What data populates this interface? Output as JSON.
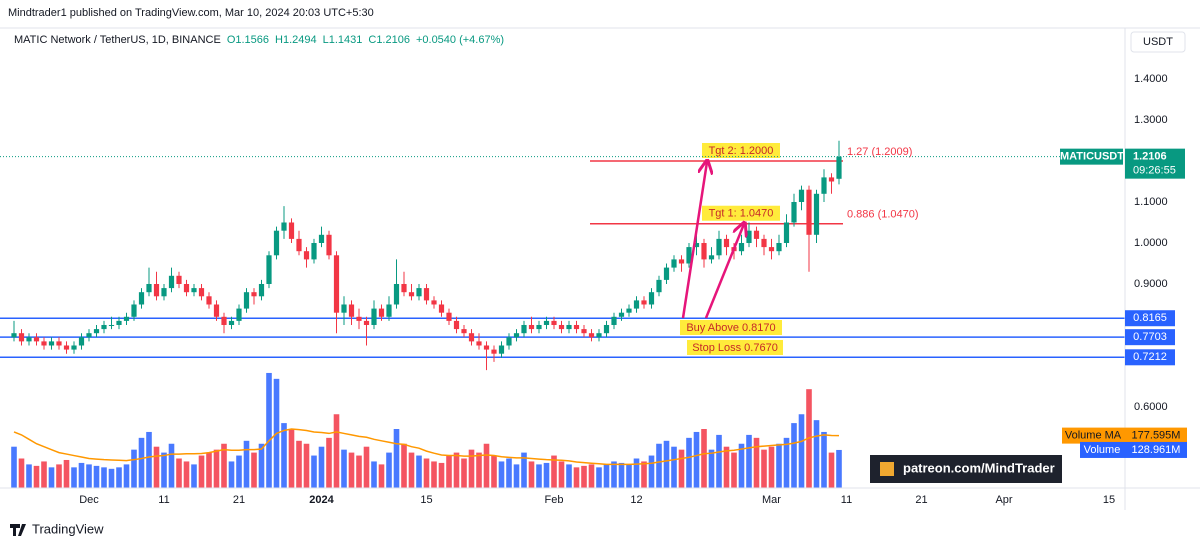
{
  "header": {
    "publisher": "Mindtrader1 published on TradingView.com, Mar 10, 2024 20:03 UTC+5:30",
    "footer": "TradingView"
  },
  "chart_data": {
    "type": "candlestick",
    "title": "MATIC Network / TetherUS, 1D, BINANCE",
    "legend": [
      "O1.1566",
      "H1.2494",
      "L1.1431",
      "C1.2106",
      "+0.0540 (+4.67%)"
    ],
    "currency": "USDT",
    "symbol": "MATICUSDT",
    "last_price": 1.2106,
    "countdown": "09:26:55",
    "up_color": "#089981",
    "down_color": "#f23645",
    "grid": false,
    "ylim": [
      0.4024,
      1.5244
    ],
    "yticks": [
      {
        "value": 1.4,
        "label": "1.4000"
      },
      {
        "value": 1.3,
        "label": "1.3000"
      },
      {
        "value": 1.1,
        "label": "1.1000"
      },
      {
        "value": 1.0,
        "label": "1.0000"
      },
      {
        "value": 0.9,
        "label": "0.9000"
      },
      {
        "value": 0.6,
        "label": "0.6000"
      }
    ],
    "categories": [
      null,
      null,
      null,
      null,
      null,
      null,
      null,
      null,
      null,
      null,
      "Dec",
      null,
      null,
      null,
      null,
      null,
      null,
      null,
      null,
      null,
      "11",
      null,
      null,
      null,
      null,
      null,
      null,
      null,
      null,
      null,
      "21",
      null,
      null,
      null,
      null,
      null,
      null,
      null,
      null,
      null,
      null,
      "2024",
      null,
      null,
      null,
      null,
      null,
      null,
      null,
      null,
      null,
      null,
      null,
      null,
      null,
      "15",
      null,
      null,
      null,
      null,
      null,
      null,
      null,
      null,
      null,
      null,
      null,
      null,
      null,
      null,
      null,
      null,
      "Feb",
      null,
      null,
      null,
      null,
      null,
      null,
      null,
      null,
      null,
      null,
      "12",
      null,
      null,
      null,
      null,
      null,
      null,
      null,
      null,
      null,
      null,
      null,
      null,
      null,
      null,
      null,
      null,
      null,
      "Mar",
      null,
      null,
      null,
      null,
      null,
      null,
      null,
      null,
      null,
      "11",
      null,
      null,
      null,
      null,
      null,
      null,
      null,
      null,
      null,
      "21",
      null,
      null,
      null,
      null,
      null,
      null,
      null,
      null,
      null,
      null,
      "Apr",
      null,
      null,
      null,
      null,
      null,
      null,
      null,
      null,
      null,
      null,
      null,
      null,
      null,
      "15",
      null,
      null,
      null,
      null
    ],
    "ohlc": [
      [
        0.77,
        0.81,
        0.76,
        0.78
      ],
      [
        0.78,
        0.79,
        0.75,
        0.76
      ],
      [
        0.76,
        0.78,
        0.75,
        0.77
      ],
      [
        0.77,
        0.78,
        0.75,
        0.76
      ],
      [
        0.76,
        0.77,
        0.74,
        0.75
      ],
      [
        0.75,
        0.77,
        0.74,
        0.76
      ],
      [
        0.76,
        0.77,
        0.74,
        0.75
      ],
      [
        0.75,
        0.76,
        0.73,
        0.74
      ],
      [
        0.74,
        0.76,
        0.73,
        0.75
      ],
      [
        0.75,
        0.78,
        0.74,
        0.77
      ],
      [
        0.77,
        0.79,
        0.76,
        0.78
      ],
      [
        0.78,
        0.8,
        0.77,
        0.79
      ],
      [
        0.79,
        0.81,
        0.78,
        0.8
      ],
      [
        0.8,
        0.82,
        0.79,
        0.8
      ],
      [
        0.8,
        0.82,
        0.79,
        0.81
      ],
      [
        0.81,
        0.83,
        0.8,
        0.82
      ],
      [
        0.82,
        0.86,
        0.81,
        0.85
      ],
      [
        0.85,
        0.89,
        0.84,
        0.88
      ],
      [
        0.88,
        0.94,
        0.87,
        0.9
      ],
      [
        0.9,
        0.93,
        0.86,
        0.87
      ],
      [
        0.87,
        0.9,
        0.86,
        0.89
      ],
      [
        0.89,
        0.94,
        0.88,
        0.92
      ],
      [
        0.92,
        0.93,
        0.89,
        0.9
      ],
      [
        0.9,
        0.91,
        0.87,
        0.88
      ],
      [
        0.88,
        0.9,
        0.87,
        0.89
      ],
      [
        0.89,
        0.9,
        0.86,
        0.87
      ],
      [
        0.87,
        0.88,
        0.84,
        0.85
      ],
      [
        0.85,
        0.86,
        0.81,
        0.82
      ],
      [
        0.82,
        0.83,
        0.78,
        0.8
      ],
      [
        0.8,
        0.82,
        0.79,
        0.81
      ],
      [
        0.81,
        0.85,
        0.8,
        0.84
      ],
      [
        0.84,
        0.89,
        0.83,
        0.88
      ],
      [
        0.88,
        0.89,
        0.85,
        0.87
      ],
      [
        0.87,
        0.91,
        0.86,
        0.9
      ],
      [
        0.9,
        0.98,
        0.89,
        0.97
      ],
      [
        0.97,
        1.04,
        0.96,
        1.03
      ],
      [
        1.03,
        1.09,
        1.01,
        1.05
      ],
      [
        1.05,
        1.06,
        1.0,
        1.01
      ],
      [
        1.01,
        1.03,
        0.97,
        0.98
      ],
      [
        0.98,
        0.99,
        0.94,
        0.96
      ],
      [
        0.96,
        1.01,
        0.95,
        1.0
      ],
      [
        1.0,
        1.04,
        0.99,
        1.02
      ],
      [
        1.02,
        1.03,
        0.96,
        0.97
      ],
      [
        0.97,
        0.98,
        0.78,
        0.83
      ],
      [
        0.83,
        0.87,
        0.8,
        0.85
      ],
      [
        0.85,
        0.86,
        0.8,
        0.82
      ],
      [
        0.82,
        0.84,
        0.79,
        0.81
      ],
      [
        0.81,
        0.82,
        0.75,
        0.8
      ],
      [
        0.8,
        0.86,
        0.79,
        0.84
      ],
      [
        0.84,
        0.85,
        0.81,
        0.82
      ],
      [
        0.82,
        0.87,
        0.81,
        0.85
      ],
      [
        0.85,
        0.96,
        0.84,
        0.9
      ],
      [
        0.9,
        0.93,
        0.87,
        0.88
      ],
      [
        0.88,
        0.9,
        0.86,
        0.87
      ],
      [
        0.87,
        0.9,
        0.86,
        0.89
      ],
      [
        0.89,
        0.9,
        0.85,
        0.86
      ],
      [
        0.86,
        0.87,
        0.84,
        0.85
      ],
      [
        0.85,
        0.86,
        0.82,
        0.83
      ],
      [
        0.83,
        0.84,
        0.8,
        0.81
      ],
      [
        0.81,
        0.82,
        0.78,
        0.79
      ],
      [
        0.79,
        0.8,
        0.77,
        0.78
      ],
      [
        0.78,
        0.79,
        0.75,
        0.76
      ],
      [
        0.76,
        0.78,
        0.74,
        0.75
      ],
      [
        0.75,
        0.76,
        0.69,
        0.74
      ],
      [
        0.74,
        0.75,
        0.71,
        0.73
      ],
      [
        0.73,
        0.76,
        0.72,
        0.75
      ],
      [
        0.75,
        0.78,
        0.74,
        0.77
      ],
      [
        0.77,
        0.79,
        0.76,
        0.78
      ],
      [
        0.78,
        0.81,
        0.77,
        0.8
      ],
      [
        0.8,
        0.82,
        0.78,
        0.79
      ],
      [
        0.79,
        0.81,
        0.78,
        0.8
      ],
      [
        0.8,
        0.82,
        0.79,
        0.81
      ],
      [
        0.81,
        0.82,
        0.79,
        0.8
      ],
      [
        0.8,
        0.81,
        0.78,
        0.79
      ],
      [
        0.79,
        0.81,
        0.78,
        0.8
      ],
      [
        0.8,
        0.81,
        0.78,
        0.79
      ],
      [
        0.79,
        0.8,
        0.77,
        0.78
      ],
      [
        0.78,
        0.79,
        0.76,
        0.77
      ],
      [
        0.77,
        0.79,
        0.76,
        0.78
      ],
      [
        0.78,
        0.81,
        0.77,
        0.8
      ],
      [
        0.8,
        0.83,
        0.79,
        0.82
      ],
      [
        0.82,
        0.84,
        0.81,
        0.83
      ],
      [
        0.83,
        0.85,
        0.82,
        0.84
      ],
      [
        0.84,
        0.87,
        0.83,
        0.86
      ],
      [
        0.86,
        0.87,
        0.84,
        0.85
      ],
      [
        0.85,
        0.89,
        0.84,
        0.88
      ],
      [
        0.88,
        0.92,
        0.87,
        0.91
      ],
      [
        0.91,
        0.95,
        0.9,
        0.94
      ],
      [
        0.94,
        0.97,
        0.93,
        0.96
      ],
      [
        0.96,
        0.97,
        0.93,
        0.95
      ],
      [
        0.95,
        1.0,
        0.94,
        0.99
      ],
      [
        0.99,
        1.02,
        0.97,
        1.0
      ],
      [
        1.0,
        1.01,
        0.94,
        0.96
      ],
      [
        0.96,
        0.99,
        0.95,
        0.97
      ],
      [
        0.97,
        1.03,
        0.96,
        1.01
      ],
      [
        1.01,
        1.02,
        0.97,
        0.99
      ],
      [
        0.99,
        1.0,
        0.96,
        0.98
      ],
      [
        0.98,
        1.02,
        0.97,
        1.0
      ],
      [
        1.0,
        1.05,
        0.99,
        1.03
      ],
      [
        1.03,
        1.04,
        0.99,
        1.01
      ],
      [
        1.01,
        1.02,
        0.97,
        0.99
      ],
      [
        0.99,
        1.01,
        0.96,
        0.98
      ],
      [
        0.98,
        1.02,
        0.97,
        1.0
      ],
      [
        1.0,
        1.07,
        0.99,
        1.05
      ],
      [
        1.05,
        1.12,
        1.04,
        1.1
      ],
      [
        1.1,
        1.14,
        1.08,
        1.13
      ],
      [
        1.13,
        1.14,
        0.93,
        1.02
      ],
      [
        1.02,
        1.13,
        1.0,
        1.12
      ],
      [
        1.12,
        1.18,
        1.1,
        1.16
      ],
      [
        1.16,
        1.17,
        1.12,
        1.15
      ],
      [
        1.1566,
        1.2494,
        1.1431,
        1.2106
      ],
      null,
      null,
      null,
      null,
      null,
      null,
      null,
      null,
      null,
      null,
      null,
      null,
      null,
      null,
      null,
      null,
      null,
      null,
      null,
      null,
      null,
      null,
      null,
      null,
      null,
      null,
      null,
      null,
      null,
      null,
      null,
      null,
      null,
      null,
      null,
      null,
      null,
      null,
      null,
      null
    ],
    "volume_ylim": [
      0,
      400
    ],
    "volume_up_color": "#2962ff",
    "volume_down_color": "#f23645",
    "volume_label": "Volume",
    "volume": [
      140,
      100,
      80,
      75,
      90,
      70,
      80,
      95,
      70,
      85,
      80,
      75,
      70,
      65,
      70,
      80,
      130,
      170,
      190,
      140,
      120,
      150,
      100,
      90,
      80,
      110,
      120,
      130,
      150,
      90,
      110,
      160,
      120,
      150,
      390,
      370,
      220,
      200,
      160,
      150,
      110,
      140,
      170,
      250,
      130,
      120,
      110,
      140,
      90,
      80,
      120,
      200,
      150,
      120,
      110,
      100,
      90,
      85,
      110,
      120,
      100,
      130,
      120,
      150,
      110,
      90,
      100,
      80,
      120,
      90,
      80,
      85,
      110,
      90,
      80,
      70,
      75,
      80,
      70,
      80,
      90,
      85,
      80,
      100,
      90,
      110,
      150,
      160,
      140,
      130,
      170,
      190,
      200,
      130,
      180,
      140,
      120,
      150,
      180,
      170,
      130,
      140,
      150,
      170,
      220,
      250,
      335,
      230,
      190,
      120,
      128.961,
      null,
      null,
      null,
      null,
      null,
      null,
      null,
      null,
      null,
      null,
      null,
      null,
      null,
      null,
      null,
      null,
      null,
      null,
      null,
      null,
      null,
      null,
      null,
      null,
      null,
      null,
      null,
      null,
      null,
      null,
      null,
      null,
      null,
      null,
      null,
      null,
      null,
      null,
      null,
      null
    ],
    "volume_ma_label": "Volume MA",
    "volume_ma_color": "#ff9800",
    "volume_ma": [
      190,
      180,
      165,
      150,
      140,
      130,
      120,
      115,
      110,
      105,
      100,
      98,
      96,
      95,
      94,
      93,
      96,
      100,
      105,
      108,
      110,
      115,
      115,
      116,
      116,
      117,
      120,
      125,
      130,
      128,
      128,
      130,
      130,
      132,
      160,
      185,
      195,
      200,
      198,
      195,
      190,
      188,
      185,
      190,
      185,
      180,
      175,
      172,
      165,
      160,
      155,
      150,
      148,
      140,
      135,
      125,
      118,
      112,
      110,
      110,
      108,
      108,
      110,
      112,
      110,
      106,
      104,
      102,
      102,
      100,
      98,
      96,
      95,
      94,
      92,
      88,
      86,
      84,
      82,
      80,
      80,
      80,
      80,
      81,
      82,
      84,
      88,
      92,
      96,
      100,
      104,
      110,
      116,
      118,
      122,
      126,
      128,
      132,
      136,
      140,
      142,
      144,
      146,
      148,
      152,
      158,
      170,
      176,
      180,
      178,
      177.595,
      null,
      null,
      null,
      null,
      null,
      null,
      null,
      null,
      null,
      null,
      null,
      null,
      null,
      null,
      null,
      null,
      null,
      null,
      null,
      null,
      null,
      null,
      null,
      null,
      null,
      null,
      null,
      null,
      null,
      null,
      null,
      null,
      null,
      null,
      null,
      null,
      null,
      null,
      null,
      null
    ],
    "value_labels": {
      "volume": "128.961M",
      "volume_ma": "177.595M"
    },
    "levels": {
      "color": "#2962ff",
      "values": [
        0.8165,
        0.7703,
        0.7212
      ]
    },
    "targets": {
      "color": "#f23645",
      "items": [
        {
          "value": 1.2,
          "label": "Tgt 2: 1.2000",
          "fib_label": "1.27 (1.2009)"
        },
        {
          "value": 1.047,
          "label": "Tgt 1: 1.0470",
          "fib_label": "0.886 (1.0470)"
        }
      ]
    },
    "notes": [
      "Buy Above 0.8170",
      "Stop Loss 0.7670"
    ],
    "watermark": "patreon.com/MindTrader"
  }
}
